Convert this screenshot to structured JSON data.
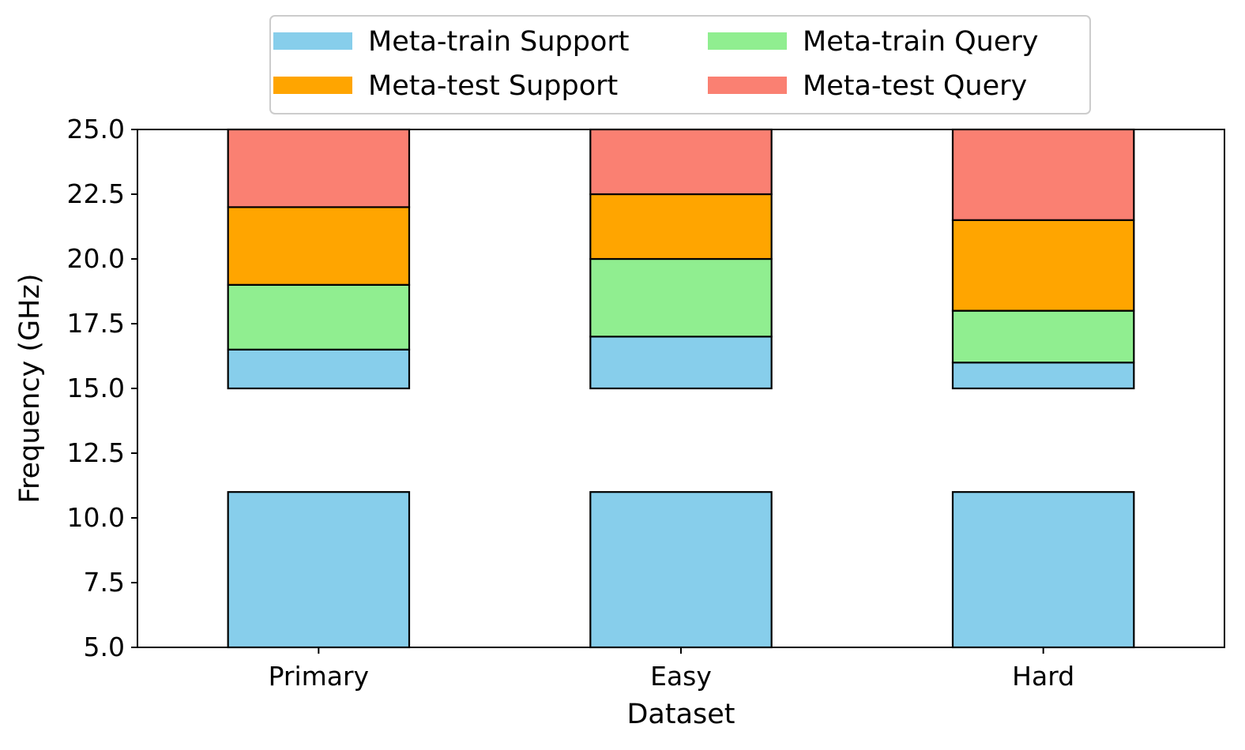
{
  "chart_data": {
    "type": "bar",
    "stacked": true,
    "xlabel": "Dataset",
    "ylabel": "Frequency (GHz)",
    "ylim": [
      5.0,
      25.0
    ],
    "yticks": [
      "5.0",
      "7.5",
      "10.0",
      "12.5",
      "15.0",
      "17.5",
      "20.0",
      "22.5",
      "25.0"
    ],
    "categories": [
      "Primary",
      "Easy",
      "Hard"
    ],
    "legend_position": "top-center",
    "grid": false,
    "series": [
      {
        "name": "Meta-train Support",
        "color": "#87CEEB",
        "ranges": [
          [
            [
              5.0,
              11.0
            ],
            [
              15.0,
              16.5
            ]
          ],
          [
            [
              5.0,
              11.0
            ],
            [
              15.0,
              17.0
            ]
          ],
          [
            [
              5.0,
              11.0
            ],
            [
              15.0,
              16.0
            ]
          ]
        ]
      },
      {
        "name": "Meta-train Query",
        "color": "#90EE90",
        "ranges": [
          [
            [
              16.5,
              19.0
            ]
          ],
          [
            [
              17.0,
              20.0
            ]
          ],
          [
            [
              16.0,
              18.0
            ]
          ]
        ]
      },
      {
        "name": "Meta-test Support",
        "color": "#FFA500",
        "ranges": [
          [
            [
              19.0,
              22.0
            ]
          ],
          [
            [
              20.0,
              22.5
            ]
          ],
          [
            [
              18.0,
              21.5
            ]
          ]
        ]
      },
      {
        "name": "Meta-test Query",
        "color": "#FA8072",
        "ranges": [
          [
            [
              22.0,
              25.0
            ]
          ],
          [
            [
              22.5,
              25.0
            ]
          ],
          [
            [
              21.5,
              25.0
            ]
          ]
        ]
      }
    ],
    "legend_order": [
      0,
      2,
      1,
      3
    ]
  }
}
